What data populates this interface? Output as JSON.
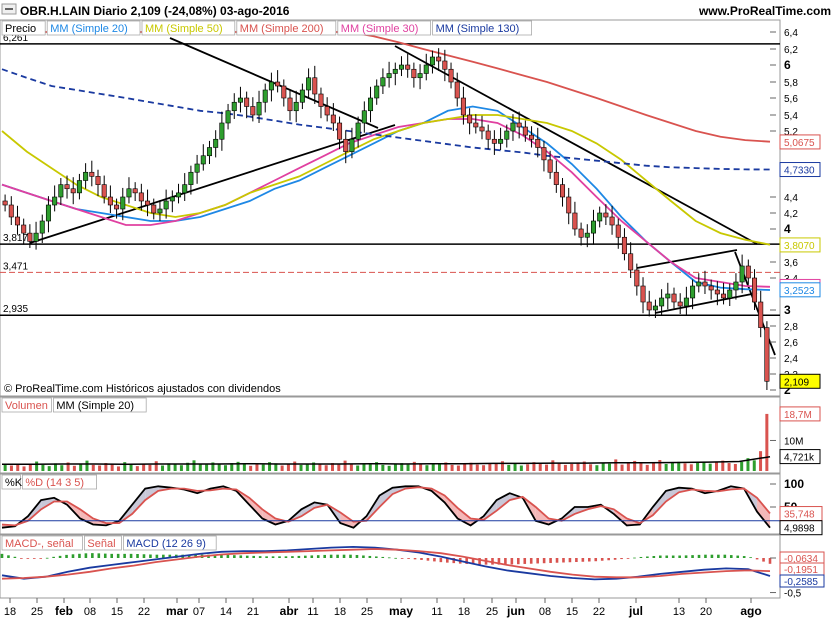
{
  "header": {
    "title": "OBR.H.LAIN  Diario  2,109 (-24,08%)  03-ago-2016",
    "brand": "www.ProRealTime.com",
    "copyright": "© ProRealTime.com Históricos ajustados con dividendos"
  },
  "legend": {
    "price": [
      {
        "label": "Precio",
        "color": "#000000"
      },
      {
        "label": "MM (Simple 20)",
        "color": "#1e88e5"
      },
      {
        "label": "MM (Simple 50)",
        "color": "#c8c800"
      },
      {
        "label": "MM (Simple 200)",
        "color": "#d9534f"
      },
      {
        "label": "MM (Simple 30)",
        "color": "#e040a0"
      },
      {
        "label": "MM (Simple 130)",
        "color": "#1a3aa0"
      }
    ],
    "volume": [
      {
        "label": "Volumen",
        "color": "#d9534f"
      },
      {
        "label": "MM (Simple 20)",
        "color": "#000000"
      }
    ],
    "stoch": [
      {
        "label": "%K",
        "color": "#000000"
      },
      {
        "label": "%D (14 3 5)",
        "color": "#d9534f"
      }
    ],
    "macd": [
      {
        "label": "MACD-, señal",
        "color": "#d9534f"
      },
      {
        "label": "Señal",
        "color": "#d9534f"
      },
      {
        "label": "MACD (12 26 9)",
        "color": "#1a3aa0"
      }
    ]
  },
  "chart_data": [
    {
      "type": "candlestick",
      "title": "OBR.H.LAIN Diario",
      "ylim": [
        2.0,
        6.4
      ],
      "y_ticks": [
        "6,4",
        "6,2",
        "6",
        "5,8",
        "5,6",
        "5,4",
        "5,2",
        "4,4",
        "4,2",
        "4",
        "3,6",
        "3,4",
        "3",
        "2,8",
        "2,6",
        "2,4",
        "2,2",
        "2"
      ],
      "x_ticks": [
        "18",
        "25",
        "feb",
        "08",
        "15",
        "22",
        "mar",
        "07",
        "14",
        "21",
        "abr",
        "11",
        "18",
        "25",
        "may",
        "11",
        "18",
        "25",
        "jun",
        "08",
        "15",
        "22",
        "jul",
        "13",
        "20",
        "ago"
      ],
      "levels": [
        {
          "label": "6,261",
          "value": 6.261,
          "style": "solid"
        },
        {
          "label": "3,817",
          "value": 3.817,
          "style": "solid"
        },
        {
          "label": "3,471",
          "value": 3.471,
          "style": "dashed-red"
        },
        {
          "label": "2,935",
          "value": 2.935,
          "style": "solid"
        }
      ],
      "value_tags": [
        {
          "label": "5,0675",
          "value": 5.0675,
          "color": "#d9534f"
        },
        {
          "label": "4,7330",
          "value": 4.733,
          "color": "#1a3aa0"
        },
        {
          "label": "3,8070",
          "value": 3.807,
          "color": "#c8c800"
        },
        {
          "label": "3,2944",
          "value": 3.2944,
          "color": "#e040a0"
        },
        {
          "label": "3,2523",
          "value": 3.2523,
          "color": "#1e88e5"
        },
        {
          "label": "2,109",
          "value": 2.109,
          "color": "#000000",
          "highlight": "#ffff00"
        }
      ],
      "close": [
        4.3,
        4.15,
        4.05,
        3.95,
        3.85,
        3.95,
        4.1,
        4.3,
        4.4,
        4.55,
        4.5,
        4.45,
        4.6,
        4.7,
        4.65,
        4.55,
        4.4,
        4.3,
        4.25,
        4.4,
        4.5,
        4.45,
        4.35,
        4.3,
        4.2,
        4.25,
        4.35,
        4.4,
        4.45,
        4.55,
        4.7,
        4.8,
        4.9,
        5.0,
        5.1,
        5.3,
        5.45,
        5.55,
        5.6,
        5.5,
        5.4,
        5.55,
        5.7,
        5.8,
        5.75,
        5.6,
        5.45,
        5.55,
        5.7,
        5.85,
        5.65,
        5.5,
        5.4,
        5.3,
        5.1,
        4.95,
        5.1,
        5.3,
        5.45,
        5.6,
        5.75,
        5.85,
        5.9,
        5.95,
        6.0,
        5.95,
        5.85,
        5.9,
        6.0,
        6.1,
        6.05,
        5.95,
        5.8,
        5.6,
        5.4,
        5.3,
        5.25,
        5.2,
        5.1,
        5.05,
        5.1,
        5.2,
        5.3,
        5.25,
        5.15,
        5.1,
        5.0,
        4.85,
        4.7,
        4.55,
        4.4,
        4.2,
        4.0,
        3.9,
        3.95,
        4.1,
        4.2,
        4.15,
        4.05,
        3.9,
        3.7,
        3.5,
        3.3,
        3.1,
        3.0,
        3.05,
        3.15,
        3.2,
        3.1,
        3.05,
        3.15,
        3.3,
        3.35,
        3.3,
        3.25,
        3.2,
        3.15,
        3.25,
        3.35,
        3.55,
        3.4,
        3.1,
        2.78,
        2.109
      ],
      "ma": [
        {
          "name": "MM (Simple 20)",
          "color": "#1e88e5",
          "values": [
            4.55,
            4.45,
            4.35,
            4.25,
            4.2,
            4.15,
            4.1,
            4.1,
            4.15,
            4.25,
            4.35,
            4.5,
            4.6,
            4.75,
            4.9,
            5.05,
            5.2,
            5.3,
            5.45,
            5.5,
            5.45,
            5.25,
            5.05,
            4.8,
            4.5,
            4.15,
            3.85,
            3.6,
            3.35,
            3.28,
            3.26,
            3.25
          ]
        },
        {
          "name": "MM (Simple 30)",
          "color": "#e040a0",
          "values": [
            4.55,
            4.45,
            4.35,
            4.25,
            4.15,
            4.05,
            4.05,
            4.1,
            4.2,
            4.3,
            4.45,
            4.6,
            4.75,
            4.9,
            5.05,
            5.15,
            5.25,
            5.3,
            5.35,
            5.35,
            5.3,
            5.15,
            4.95,
            4.7,
            4.4,
            4.1,
            3.85,
            3.6,
            3.4,
            3.35,
            3.3,
            3.29
          ]
        },
        {
          "name": "MM (Simple 50)",
          "color": "#c8c800",
          "values": [
            5.2,
            4.95,
            4.75,
            4.55,
            4.4,
            4.3,
            4.2,
            4.15,
            4.2,
            4.3,
            4.45,
            4.55,
            4.65,
            4.8,
            4.95,
            5.1,
            5.2,
            5.3,
            5.35,
            5.4,
            5.4,
            5.35,
            5.3,
            5.2,
            5.05,
            4.85,
            4.6,
            4.35,
            4.1,
            3.95,
            3.87,
            3.81
          ]
        },
        {
          "name": "MM (Simple 130)",
          "color": "#1a3aa0",
          "values": [
            5.95,
            5.85,
            5.75,
            5.7,
            5.65,
            5.6,
            5.55,
            5.5,
            5.45,
            5.42,
            5.38,
            5.33,
            5.28,
            5.24,
            5.2,
            5.16,
            5.12,
            5.08,
            5.04,
            5.0,
            4.97,
            4.94,
            4.9,
            4.87,
            4.84,
            4.81,
            4.78,
            4.76,
            4.75,
            4.74,
            4.735,
            4.733
          ]
        },
        {
          "name": "MM (Simple 200)",
          "color": "#d9534f",
          "values": [
            6.4,
            6.4,
            6.4,
            6.4,
            6.4,
            6.4,
            6.4,
            6.4,
            6.4,
            6.4,
            6.4,
            6.4,
            6.4,
            6.4,
            6.4,
            6.35,
            6.28,
            6.2,
            6.12,
            6.04,
            5.96,
            5.88,
            5.8,
            5.7,
            5.6,
            5.5,
            5.4,
            5.3,
            5.2,
            5.13,
            5.09,
            5.07
          ]
        }
      ]
    },
    {
      "type": "bar",
      "title": "Volumen",
      "y_ticks": [
        "10M"
      ],
      "value_tags": [
        {
          "label": "18,7M",
          "value": 18.7,
          "color": "#d9534f"
        },
        {
          "label": "4,721k",
          "value": 4.721,
          "color": "#000000"
        }
      ],
      "values": [
        2.1,
        1.8,
        2.4,
        1.5,
        2.2,
        3.1,
        2.0,
        1.6,
        2.5,
        1.9,
        2.8,
        1.7,
        2.3,
        3.4,
        2.0,
        1.8,
        2.6,
        2.2,
        1.5,
        2.9,
        2.1,
        1.6,
        2.4,
        2.0,
        3.2,
        1.8,
        2.5,
        2.2,
        1.9,
        2.7,
        3.5,
        2.3,
        2.1,
        2.8,
        2.4,
        1.9,
        2.6,
        3.0,
        2.2,
        1.7,
        2.4,
        2.1,
        2.9,
        2.5,
        1.8,
        2.3,
        3.1,
        2.0,
        2.2,
        2.8,
        2.4,
        1.9,
        2.6,
        2.1,
        3.4,
        2.3,
        1.8,
        2.5,
        2.2,
        2.9,
        2.0,
        1.7,
        2.4,
        2.6,
        2.1,
        3.0,
        2.3,
        1.9,
        2.5,
        2.2,
        2.8,
        2.0,
        1.8,
        2.4,
        2.7,
        2.1,
        1.9,
        2.6,
        2.3,
        3.2,
        2.0,
        2.5,
        1.8,
        2.2,
        2.9,
        2.4,
        2.1,
        3.5,
        2.6,
        2.0,
        2.3,
        2.8,
        3.1,
        2.2,
        1.9,
        2.6,
        2.4,
        3.8,
        2.1,
        2.7,
        3.3,
        2.5,
        2.0,
        2.9,
        3.6,
        2.3,
        2.8,
        3.0,
        2.5,
        2.2,
        2.7,
        3.1,
        2.4,
        2.9,
        3.4,
        2.6,
        2.3,
        3.0,
        4.2,
        3.5,
        6.5,
        18.7
      ],
      "ma_values": [
        2.2,
        2.2,
        2.3,
        2.3,
        2.2,
        2.3,
        2.3,
        2.3,
        2.4,
        2.3,
        2.3,
        2.3,
        2.4,
        2.3,
        2.4,
        2.4,
        2.5,
        2.5,
        2.6,
        2.6,
        2.7,
        2.7,
        2.8,
        2.9,
        3.1,
        4.7
      ]
    },
    {
      "type": "line",
      "title": "%K %D (14 3 5)",
      "ylim": [
        0,
        100
      ],
      "y_ticks": [
        "100",
        "50"
      ],
      "value_tags": [
        {
          "label": "35,748",
          "value": 35.748,
          "color": "#d9534f"
        },
        {
          "label": "4,9898",
          "value": 4.9898,
          "color": "#000000"
        }
      ],
      "series": [
        {
          "name": "%K",
          "values": [
            5,
            8,
            30,
            65,
            70,
            55,
            25,
            12,
            10,
            20,
            55,
            90,
            95,
            92,
            88,
            80,
            90,
            95,
            85,
            55,
            25,
            12,
            20,
            45,
            60,
            55,
            15,
            5,
            30,
            75,
            92,
            95,
            95,
            85,
            60,
            25,
            10,
            30,
            65,
            80,
            70,
            20,
            12,
            25,
            50,
            50,
            55,
            35,
            10,
            12,
            50,
            85,
            92,
            90,
            80,
            85,
            95,
            90,
            40,
            5
          ]
        },
        {
          "name": "%D (14 3 5)",
          "values": [
            12,
            10,
            20,
            45,
            62,
            62,
            45,
            25,
            15,
            15,
            35,
            65,
            85,
            90,
            90,
            85,
            86,
            90,
            88,
            70,
            45,
            25,
            18,
            30,
            48,
            55,
            38,
            18,
            20,
            50,
            78,
            90,
            93,
            90,
            75,
            48,
            25,
            22,
            42,
            65,
            72,
            50,
            25,
            20,
            35,
            45,
            52,
            45,
            25,
            15,
            32,
            62,
            82,
            88,
            85,
            84,
            88,
            90,
            70,
            36
          ]
        }
      ]
    },
    {
      "type": "line",
      "title": "MACD (12 26 9)",
      "y_ticks": [
        "0",
        "-0,5"
      ],
      "value_tags": [
        {
          "label": "-0,0634",
          "value": -0.0634,
          "color": "#d9534f"
        },
        {
          "label": "-0,1951",
          "value": -0.1951,
          "color": "#d9534f"
        },
        {
          "label": "-0,2585",
          "value": -0.2585,
          "color": "#1a3aa0"
        }
      ],
      "series": [
        {
          "name": "MACD",
          "values": [
            -0.25,
            -0.3,
            -0.27,
            -0.2,
            -0.14,
            -0.1,
            -0.06,
            -0.02,
            0.02,
            0.06,
            0.09,
            0.1,
            0.1,
            0.11,
            0.13,
            0.15,
            0.16,
            0.15,
            0.12,
            0.08,
            0.02,
            -0.05,
            -0.12,
            -0.18,
            -0.22,
            -0.26,
            -0.29,
            -0.31,
            -0.3,
            -0.27,
            -0.23,
            -0.2,
            -0.17,
            -0.15,
            -0.16,
            -0.26
          ]
        },
        {
          "name": "Señal",
          "values": [
            -0.3,
            -0.29,
            -0.27,
            -0.24,
            -0.2,
            -0.15,
            -0.11,
            -0.06,
            -0.02,
            0.02,
            0.05,
            0.07,
            0.08,
            0.09,
            0.1,
            0.11,
            0.12,
            0.13,
            0.12,
            0.1,
            0.07,
            0.02,
            -0.04,
            -0.1,
            -0.15,
            -0.2,
            -0.24,
            -0.27,
            -0.28,
            -0.28,
            -0.26,
            -0.23,
            -0.21,
            -0.19,
            -0.18,
            -0.19
          ]
        }
      ]
    }
  ]
}
